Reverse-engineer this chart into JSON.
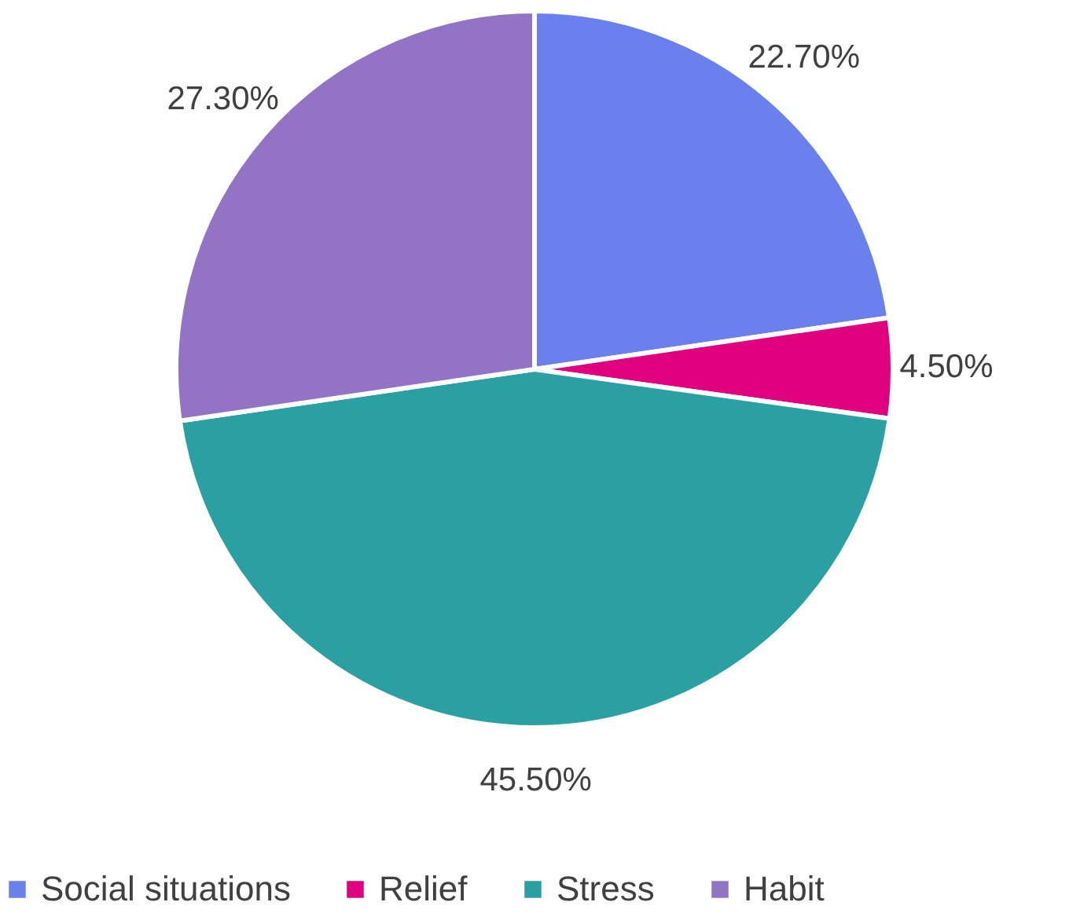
{
  "chart_data": {
    "type": "pie",
    "categories": [
      "Social situations",
      "Relief",
      "Stress",
      "Habit"
    ],
    "values": [
      22.7,
      4.5,
      45.5,
      27.3
    ],
    "colors": [
      "#6a80ec",
      "#e0007f",
      "#2ba0a3",
      "#9373c3"
    ],
    "value_labels": [
      "22.70%",
      "4.50%",
      "45.50%",
      "27.30%"
    ],
    "legend": "bottom"
  }
}
